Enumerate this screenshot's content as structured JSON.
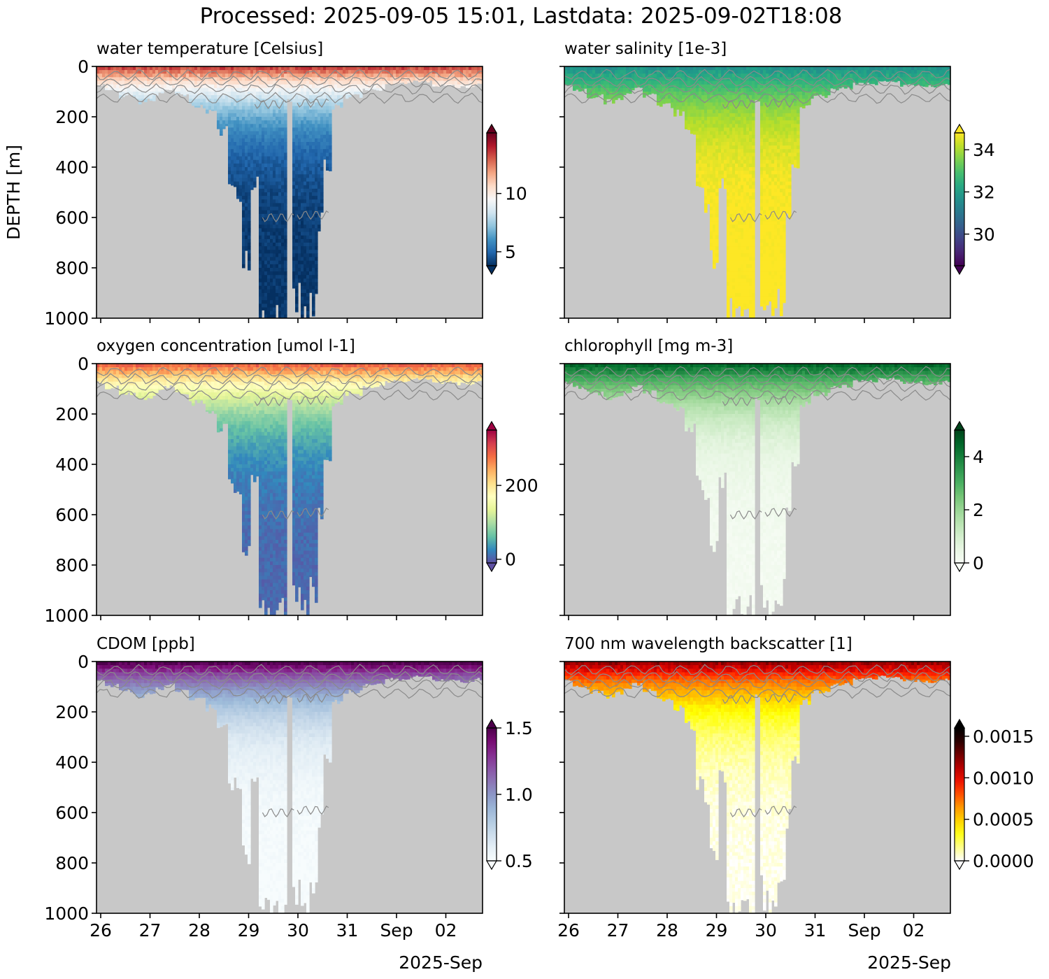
{
  "figure": {
    "suptitle": "Processed: 2025-09-05 15:01, Lastdata: 2025-09-02T18:08",
    "ylabel": "DEPTH [m]",
    "xaxis_offset_label": "2025-Sep",
    "colors": {
      "missing": "#c8c8c8",
      "contour": "#8a8a8a",
      "frame": "#000000"
    }
  },
  "chart_data": [
    {
      "id": "temp",
      "type": "heatmap",
      "title": "water temperature [Celsius]",
      "colormap": "RdBu_r",
      "clim": [
        3.8,
        15.2
      ],
      "colorbar_ticks": [
        "5",
        "10"
      ],
      "colorbar_tick_values": [
        5,
        10
      ],
      "colorbar_extend": "both",
      "surface_value": 13.5,
      "deep_value": 3.9,
      "ylim": [
        1000,
        0
      ],
      "yticks": [
        "0",
        "200",
        "400",
        "600",
        "800",
        "1000"
      ],
      "xticks": [
        "26",
        "27",
        "28",
        "29",
        "30",
        "31",
        "Sep",
        "02"
      ],
      "show_xticklabels": false,
      "show_yticklabels": true
    },
    {
      "id": "sal",
      "type": "heatmap",
      "title": "water salinity [1e-3]",
      "colormap": "viridis",
      "clim": [
        28.5,
        34.8
      ],
      "colorbar_ticks": [
        "30",
        "32",
        "34"
      ],
      "colorbar_tick_values": [
        30,
        32,
        34
      ],
      "colorbar_extend": "both",
      "surface_value": 31.5,
      "deep_value": 34.9,
      "ylim": [
        1000,
        0
      ],
      "yticks": [
        "0",
        "200",
        "400",
        "600",
        "800",
        "1000"
      ],
      "xticks": [
        "26",
        "27",
        "28",
        "29",
        "30",
        "31",
        "Sep",
        "02"
      ],
      "show_xticklabels": false,
      "show_yticklabels": false
    },
    {
      "id": "oxy",
      "type": "heatmap",
      "title": "oxygen concentration [umol l-1]",
      "colormap": "Spectral_r",
      "clim": [
        -10,
        350
      ],
      "colorbar_ticks": [
        "0",
        "200"
      ],
      "colorbar_tick_values": [
        0,
        200
      ],
      "colorbar_extend": "both",
      "surface_value": 290,
      "deep_value": 5,
      "ylim": [
        1000,
        0
      ],
      "yticks": [
        "0",
        "200",
        "400",
        "600",
        "800",
        "1000"
      ],
      "xticks": [
        "26",
        "27",
        "28",
        "29",
        "30",
        "31",
        "Sep",
        "02"
      ],
      "show_xticklabels": false,
      "show_yticklabels": true
    },
    {
      "id": "chl",
      "type": "heatmap",
      "title": "chlorophyll [mg m-3]",
      "colormap": "Greens",
      "clim": [
        0,
        5
      ],
      "colorbar_ticks": [
        "0",
        "2",
        "4"
      ],
      "colorbar_tick_values": [
        0,
        2,
        4
      ],
      "colorbar_extend": "both",
      "surface_value": 4.5,
      "deep_value": 0.1,
      "ylim": [
        1000,
        0
      ],
      "yticks": [
        "0",
        "200",
        "400",
        "600",
        "800",
        "1000"
      ],
      "xticks": [
        "26",
        "27",
        "28",
        "29",
        "30",
        "31",
        "Sep",
        "02"
      ],
      "show_xticklabels": false,
      "show_yticklabels": false
    },
    {
      "id": "cdom",
      "type": "heatmap",
      "title": "CDOM [ppb]",
      "colormap": "BuPu",
      "clim": [
        0.5,
        1.5
      ],
      "colorbar_ticks": [
        "0.5",
        "1.0",
        "1.5"
      ],
      "colorbar_tick_values": [
        0.5,
        1.0,
        1.5
      ],
      "colorbar_extend": "both",
      "surface_value": 1.5,
      "deep_value": 0.5,
      "ylim": [
        1000,
        0
      ],
      "yticks": [
        "0",
        "200",
        "400",
        "600",
        "800",
        "1000"
      ],
      "xticks": [
        "26",
        "27",
        "28",
        "29",
        "30",
        "31",
        "Sep",
        "02"
      ],
      "show_xticklabels": true,
      "show_yticklabels": true
    },
    {
      "id": "bb700",
      "type": "heatmap",
      "title": "700 nm wavelength backscatter [1]",
      "colormap": "hot_r",
      "clim": [
        0,
        0.0016
      ],
      "colorbar_ticks": [
        "0.0000",
        "0.0005",
        "0.0010",
        "0.0015"
      ],
      "colorbar_tick_values": [
        0,
        0.0005,
        0.001,
        0.0015
      ],
      "colorbar_extend": "both",
      "surface_value": 0.0012,
      "deep_value": 2e-05,
      "ylim": [
        1000,
        0
      ],
      "yticks": [
        "0",
        "200",
        "400",
        "600",
        "800",
        "1000"
      ],
      "xticks": [
        "26",
        "27",
        "28",
        "29",
        "30",
        "31",
        "Sep",
        "02"
      ],
      "show_xticklabels": true,
      "show_yticklabels": false
    }
  ],
  "profile_max_depths": [
    {
      "x": 0,
      "depth": 75
    },
    {
      "x": 0.04,
      "depth": 95
    },
    {
      "x": 0.08,
      "depth": 120
    },
    {
      "x": 0.12,
      "depth": 140
    },
    {
      "x": 0.14,
      "depth": 130
    },
    {
      "x": 0.16,
      "depth": 110
    },
    {
      "x": 0.19,
      "depth": 90
    },
    {
      "x": 0.22,
      "depth": 115
    },
    {
      "x": 0.26,
      "depth": 155
    },
    {
      "x": 0.3,
      "depth": 185
    },
    {
      "x": 0.33,
      "depth": 255
    },
    {
      "x": 0.35,
      "depth": 480
    },
    {
      "x": 0.37,
      "depth": 540
    },
    {
      "x": 0.39,
      "depth": 760
    },
    {
      "x": 0.41,
      "depth": 460
    },
    {
      "x": 0.43,
      "depth": 1000
    },
    {
      "x": 0.45,
      "depth": 1000
    },
    {
      "x": 0.49,
      "depth": 1000
    },
    {
      "x": 0.5,
      "depth": 140
    },
    {
      "x": 0.52,
      "depth": 920
    },
    {
      "x": 0.54,
      "depth": 1000
    },
    {
      "x": 0.56,
      "depth": 920
    },
    {
      "x": 0.58,
      "depth": 620
    },
    {
      "x": 0.6,
      "depth": 400
    },
    {
      "x": 0.62,
      "depth": 160
    },
    {
      "x": 0.66,
      "depth": 120
    },
    {
      "x": 0.72,
      "depth": 90
    },
    {
      "x": 0.78,
      "depth": 70
    },
    {
      "x": 0.84,
      "depth": 60
    },
    {
      "x": 0.9,
      "depth": 75
    },
    {
      "x": 0.96,
      "depth": 80
    },
    {
      "x": 1,
      "depth": 70
    }
  ]
}
